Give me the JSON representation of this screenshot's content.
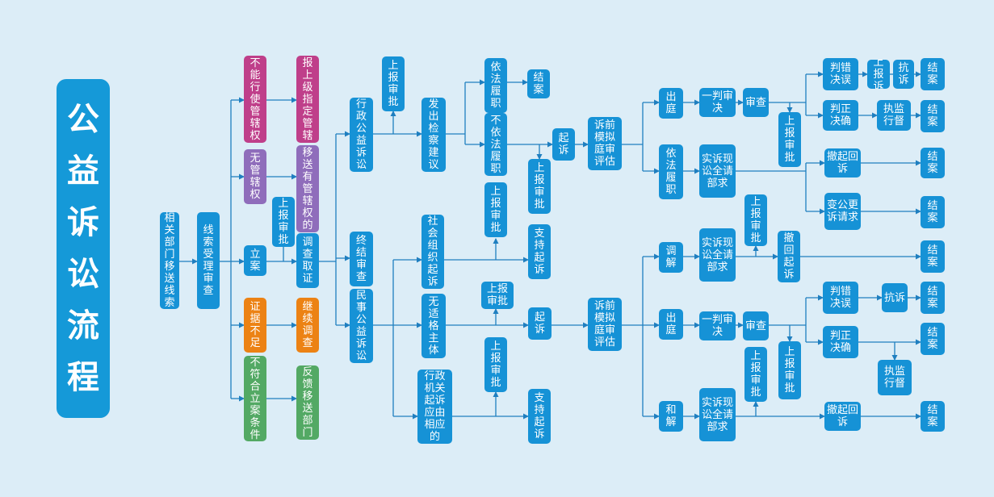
{
  "title": "公益诉讼流程",
  "colors": {
    "background": "#dcedf7",
    "blue": "#1692d6",
    "magenta": "#bf3f8a",
    "purple": "#8f6dbb",
    "orange": "#ec8214",
    "green": "#53a964",
    "line": "#1f7fc0"
  },
  "nodes": {
    "source": "相关部门移送线索",
    "review": "线索受理审查",
    "no_power": "不能行使管辖权",
    "report_designate": "报上级指定管辖",
    "no_jurisdiction": "无管辖权",
    "transfer": "移送有管辖权的",
    "file_case": "立案",
    "approval_a": "上报审批",
    "investigate": "调查取证",
    "insufficient": "证据不足",
    "continue": "继续调查",
    "not_meet": "不符合立案条件",
    "feedback": "反馈移送部门",
    "admin_suit": "行政公益诉讼",
    "approval_b": "上报审批",
    "recommend": "发出检察建议",
    "lawful": "依法履职",
    "close_1": "结案",
    "unlawful": "不依法履职",
    "approval_c": "上报审批",
    "sue_1": "起诉",
    "pretrial_1": "诉前模拟庭审评估",
    "end_review": "终结审查",
    "civil_suit": "民事公益诉讼",
    "social_org": "社会组织起诉",
    "approval_d": "上报审批",
    "support_1": "支持起诉",
    "no_subject": "无适格主体",
    "approval_e": "上报审批",
    "sue_2": "起诉",
    "pretrial_2": "诉前模拟庭审评估",
    "admin_organ": "行政机关起诉应由相应的",
    "approval_f": "上报审批",
    "support_2": "支持起诉",
    "court_1": "出庭",
    "first_judg_1": "一判审决",
    "review_1": "审查",
    "approval_g": "上报审批",
    "wrong_1": "判错决误",
    "appeal_approval": "上报诉",
    "protest_1": "抗诉",
    "close_2": "结案",
    "correct_1": "判正决确",
    "supervise_1": "执监行督",
    "close_3": "结案",
    "lawful_2": "依法履职",
    "realize_1": "实诉现讼全请部求",
    "withdraw_1": "撤起回诉",
    "close_4": "结案",
    "change_claim": "变公更诉请求",
    "close_5": "结案",
    "mediate": "调解",
    "realize_2": "实诉现讼全请部求",
    "approval_h": "上报审批",
    "withdraw_2": "撤回起诉",
    "close_6": "结案",
    "court_2": "出庭",
    "first_judg_2": "一判审决",
    "review_2": "审查",
    "wrong_2": "判错决误",
    "protest_2": "抗诉",
    "close_7": "结案",
    "correct_2": "判正决确",
    "close_8": "结案",
    "supervise_2": "执监行督",
    "approval_i": "上报审批",
    "approval_j": "上报审批",
    "settle": "和解",
    "realize_3": "实诉现讼全请部求",
    "withdraw_3": "撤起回诉",
    "close_9": "结案"
  }
}
